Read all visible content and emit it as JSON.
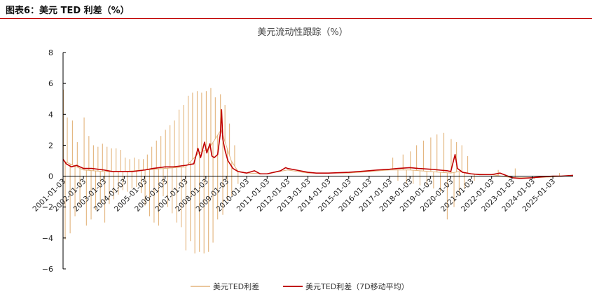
{
  "figure_caption": "图表6：美元 TED 利差（%）",
  "colors": {
    "rule": "#c00000",
    "series_daily": "#e3b47c",
    "series_ma": "#c00000",
    "axis": "#000000"
  },
  "chart_data": {
    "type": "line",
    "title": "美元流动性跟踪（%）",
    "xlabel": "",
    "ylabel": "",
    "ylim": [
      -6,
      8
    ],
    "yticks": [
      -6,
      -4,
      -2,
      0,
      2,
      4,
      6,
      8
    ],
    "xlim": [
      "2001-01-03",
      "2025-12-31"
    ],
    "xticks": [
      "2001-01-03",
      "2002-01-03",
      "2003-01-03",
      "2004-01-03",
      "2005-01-03",
      "2006-01-03",
      "2007-01-03",
      "2008-01-03",
      "2009-01-03",
      "2010-01-03",
      "2011-01-03",
      "2012-01-03",
      "2013-01-03",
      "2014-01-03",
      "2015-01-03",
      "2016-01-03",
      "2017-01-03",
      "2018-01-03",
      "2019-01-03",
      "2020-01-03",
      "2021-01-03",
      "2022-01-03",
      "2023-01-03",
      "2024-01-03",
      "2025-01-03"
    ],
    "grid": false,
    "legend_position": "bottom-center",
    "series": [
      {
        "name": "美元TED利差",
        "style": "spiky",
        "baseline": [
          [
            "2001-01-03",
            1.0
          ],
          [
            "2002-01-03",
            0.4
          ],
          [
            "2003-01-03",
            0.3
          ],
          [
            "2004-01-03",
            0.3
          ],
          [
            "2005-01-03",
            0.4
          ],
          [
            "2006-01-03",
            0.5
          ],
          [
            "2007-01-03",
            0.6
          ],
          [
            "2007-09-01",
            1.5
          ],
          [
            "2008-03-01",
            1.8
          ],
          [
            "2008-10-01",
            3.0
          ],
          [
            "2009-04-01",
            1.0
          ],
          [
            "2009-08-01",
            0.3
          ],
          [
            "2010-01-03",
            0.2
          ],
          [
            "2011-01-03",
            0.15
          ],
          [
            "2012-01-03",
            0.4
          ],
          [
            "2013-01-03",
            0.2
          ],
          [
            "2014-01-03",
            0.2
          ],
          [
            "2015-01-03",
            0.2
          ],
          [
            "2016-01-03",
            0.3
          ],
          [
            "2017-01-03",
            0.4
          ],
          [
            "2018-01-03",
            0.4
          ],
          [
            "2019-01-03",
            0.3
          ],
          [
            "2020-01-03",
            0.2
          ],
          [
            "2020-06-01",
            0.3
          ],
          [
            "2021-01-03",
            0.15
          ],
          [
            "2022-01-03",
            0.1
          ],
          [
            "2023-01-03",
            -0.1
          ],
          [
            "2024-01-03",
            -0.1
          ],
          [
            "2025-01-03",
            -0.05
          ],
          [
            "2025-12-31",
            0.05
          ]
        ],
        "spikes": [
          [
            "2001-01-10",
            5.6
          ],
          [
            "2001-02-10",
            -4.1
          ],
          [
            "2001-03-20",
            3.8
          ],
          [
            "2001-05-10",
            -3.7
          ],
          [
            "2001-06-20",
            3.6
          ],
          [
            "2001-08-05",
            -2.6
          ],
          [
            "2001-09-15",
            2.2
          ],
          [
            "2001-11-01",
            -1.9
          ],
          [
            "2002-01-15",
            3.8
          ],
          [
            "2002-02-25",
            -3.2
          ],
          [
            "2002-04-10",
            2.6
          ],
          [
            "2002-05-20",
            -2.8
          ],
          [
            "2002-07-01",
            2.0
          ],
          [
            "2002-08-10",
            -2.2
          ],
          [
            "2002-09-20",
            1.9
          ],
          [
            "2002-11-01",
            -1.8
          ],
          [
            "2002-12-10",
            2.1
          ],
          [
            "2003-01-20",
            -3.0
          ],
          [
            "2003-03-01",
            1.9
          ],
          [
            "2003-04-10",
            -1.8
          ],
          [
            "2003-05-20",
            1.8
          ],
          [
            "2003-07-01",
            -1.5
          ],
          [
            "2003-08-10",
            1.8
          ],
          [
            "2003-09-20",
            -1.2
          ],
          [
            "2003-11-01",
            1.7
          ],
          [
            "2003-12-10",
            -0.9
          ],
          [
            "2004-01-20",
            1.2
          ],
          [
            "2004-03-01",
            -1.0
          ],
          [
            "2004-04-10",
            1.1
          ],
          [
            "2004-05-20",
            -0.8
          ],
          [
            "2004-07-01",
            1.2
          ],
          [
            "2004-08-10",
            -0.7
          ],
          [
            "2004-09-20",
            1.1
          ],
          [
            "2004-11-01",
            -1.1
          ],
          [
            "2004-12-10",
            1.1
          ],
          [
            "2005-01-10",
            -1.9
          ],
          [
            "2005-02-20",
            1.4
          ],
          [
            "2005-04-01",
            -2.6
          ],
          [
            "2005-05-10",
            1.9
          ],
          [
            "2005-06-20",
            -3.0
          ],
          [
            "2005-08-01",
            2.3
          ],
          [
            "2005-09-10",
            -3.2
          ],
          [
            "2005-10-20",
            2.6
          ],
          [
            "2005-12-01",
            -1.3
          ],
          [
            "2006-01-10",
            3.0
          ],
          [
            "2006-02-20",
            -2.0
          ],
          [
            "2006-04-01",
            3.3
          ],
          [
            "2006-05-10",
            -2.4
          ],
          [
            "2006-06-20",
            3.6
          ],
          [
            "2006-08-01",
            -3.0
          ],
          [
            "2006-09-10",
            4.3
          ],
          [
            "2006-10-20",
            -3.3
          ],
          [
            "2006-12-01",
            4.6
          ],
          [
            "2007-01-10",
            -4.8
          ],
          [
            "2007-02-20",
            5.2
          ],
          [
            "2007-04-01",
            -4.2
          ],
          [
            "2007-05-10",
            5.4
          ],
          [
            "2007-06-20",
            -5.0
          ],
          [
            "2007-08-01",
            5.5
          ],
          [
            "2007-09-10",
            -4.9
          ],
          [
            "2007-10-20",
            5.4
          ],
          [
            "2007-12-01",
            -5.0
          ],
          [
            "2008-01-10",
            5.5
          ],
          [
            "2008-02-20",
            -4.9
          ],
          [
            "2008-04-01",
            5.7
          ],
          [
            "2008-05-10",
            -4.3
          ],
          [
            "2008-06-20",
            5.1
          ],
          [
            "2008-08-01",
            -2.8
          ],
          [
            "2008-09-20",
            5.3
          ],
          [
            "2008-11-01",
            -2.5
          ],
          [
            "2008-12-10",
            4.6
          ],
          [
            "2009-01-20",
            -1.6
          ],
          [
            "2009-03-01",
            3.4
          ],
          [
            "2009-04-10",
            -1.3
          ],
          [
            "2009-06-01",
            2.0
          ],
          [
            "2009-08-01",
            -0.5
          ],
          [
            "2017-03-01",
            1.2
          ],
          [
            "2017-06-01",
            -0.3
          ],
          [
            "2017-09-01",
            1.4
          ],
          [
            "2017-11-01",
            -0.5
          ],
          [
            "2018-01-10",
            1.6
          ],
          [
            "2018-03-01",
            -0.5
          ],
          [
            "2018-05-01",
            2.0
          ],
          [
            "2018-07-01",
            -0.6
          ],
          [
            "2018-09-01",
            2.3
          ],
          [
            "2018-11-01",
            -0.6
          ],
          [
            "2019-01-10",
            2.5
          ],
          [
            "2019-03-01",
            -0.8
          ],
          [
            "2019-05-01",
            2.7
          ],
          [
            "2019-07-01",
            -1.0
          ],
          [
            "2019-09-01",
            2.8
          ],
          [
            "2019-11-01",
            -2.8
          ],
          [
            "2020-01-10",
            2.4
          ],
          [
            "2020-03-01",
            -2.0
          ],
          [
            "2020-04-15",
            2.2
          ],
          [
            "2020-06-01",
            -1.2
          ],
          [
            "2020-07-20",
            2.0
          ],
          [
            "2020-09-01",
            -0.8
          ],
          [
            "2020-11-01",
            1.3
          ],
          [
            "2021-03-01",
            -0.3
          ],
          [
            "2022-05-01",
            0.4
          ],
          [
            "2023-03-01",
            0.5
          ],
          [
            "2024-02-01",
            -0.2
          ],
          [
            "2025-05-01",
            0.2
          ]
        ]
      },
      {
        "name": "美元TED利差（7D移动平均）",
        "style": "line",
        "points": [
          [
            "2001-01-03",
            1.1
          ],
          [
            "2001-03-01",
            0.8
          ],
          [
            "2001-06-01",
            0.6
          ],
          [
            "2001-09-01",
            0.7
          ],
          [
            "2002-01-03",
            0.5
          ],
          [
            "2002-06-01",
            0.5
          ],
          [
            "2003-01-03",
            0.4
          ],
          [
            "2003-06-01",
            0.3
          ],
          [
            "2004-01-03",
            0.3
          ],
          [
            "2004-06-01",
            0.3
          ],
          [
            "2005-01-03",
            0.4
          ],
          [
            "2005-06-01",
            0.5
          ],
          [
            "2006-01-03",
            0.6
          ],
          [
            "2006-06-01",
            0.6
          ],
          [
            "2007-01-03",
            0.7
          ],
          [
            "2007-06-01",
            0.8
          ],
          [
            "2007-08-15",
            1.8
          ],
          [
            "2007-10-01",
            1.2
          ],
          [
            "2007-12-10",
            2.2
          ],
          [
            "2008-01-20",
            1.5
          ],
          [
            "2008-03-15",
            2.1
          ],
          [
            "2008-04-20",
            1.3
          ],
          [
            "2008-06-01",
            1.2
          ],
          [
            "2008-08-01",
            1.4
          ],
          [
            "2008-09-20",
            2.8
          ],
          [
            "2008-10-10",
            4.3
          ],
          [
            "2008-11-01",
            2.4
          ],
          [
            "2008-12-15",
            1.6
          ],
          [
            "2009-02-01",
            1.0
          ],
          [
            "2009-05-01",
            0.5
          ],
          [
            "2009-08-01",
            0.3
          ],
          [
            "2010-01-03",
            0.2
          ],
          [
            "2010-05-20",
            0.35
          ],
          [
            "2010-09-01",
            0.15
          ],
          [
            "2011-01-03",
            0.15
          ],
          [
            "2011-09-01",
            0.35
          ],
          [
            "2011-12-01",
            0.55
          ],
          [
            "2012-01-03",
            0.5
          ],
          [
            "2012-06-01",
            0.4
          ],
          [
            "2013-01-03",
            0.25
          ],
          [
            "2013-06-01",
            0.2
          ],
          [
            "2014-01-03",
            0.2
          ],
          [
            "2015-01-03",
            0.25
          ],
          [
            "2016-01-03",
            0.35
          ],
          [
            "2016-06-01",
            0.4
          ],
          [
            "2017-01-03",
            0.45
          ],
          [
            "2017-06-01",
            0.5
          ],
          [
            "2018-01-03",
            0.55
          ],
          [
            "2018-06-01",
            0.5
          ],
          [
            "2019-01-03",
            0.45
          ],
          [
            "2019-06-01",
            0.4
          ],
          [
            "2019-11-01",
            0.35
          ],
          [
            "2020-01-03",
            0.3
          ],
          [
            "2020-03-20",
            1.4
          ],
          [
            "2020-05-01",
            0.5
          ],
          [
            "2020-08-01",
            0.25
          ],
          [
            "2021-01-03",
            0.15
          ],
          [
            "2021-06-01",
            0.1
          ],
          [
            "2022-01-03",
            0.1
          ],
          [
            "2022-06-01",
            0.2
          ],
          [
            "2023-01-03",
            -0.1
          ],
          [
            "2023-06-01",
            -0.15
          ],
          [
            "2024-01-03",
            -0.1
          ],
          [
            "2024-06-01",
            -0.05
          ],
          [
            "2025-01-03",
            0.0
          ],
          [
            "2025-06-01",
            0.0
          ],
          [
            "2025-12-31",
            0.05
          ]
        ]
      }
    ]
  }
}
